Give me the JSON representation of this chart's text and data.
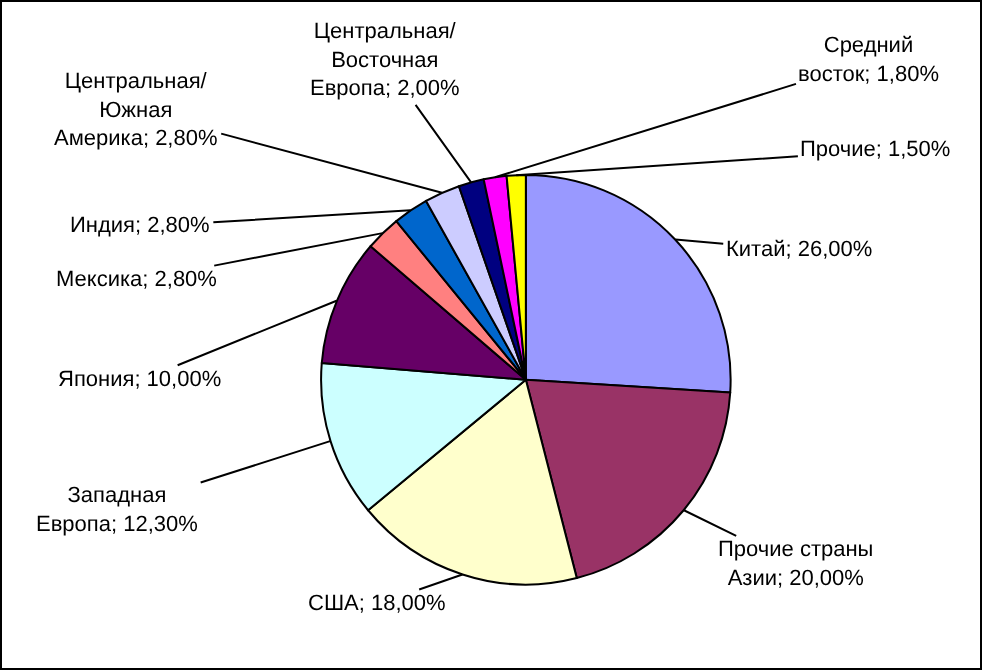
{
  "chart_data": {
    "type": "pie",
    "categories": [
      "Китай",
      "Прочие страны Азии",
      "США",
      "Западная Европа",
      "Япония",
      "Мексика",
      "Индия",
      "Центральная/Южная Америка",
      "Центральная/Восточная Европа",
      "Средний восток",
      "Прочие"
    ],
    "values": [
      26,
      20,
      18,
      12.3,
      10,
      2.8,
      2.8,
      2.8,
      2,
      1.8,
      1.5
    ],
    "colors": [
      "#9999ff",
      "#993366",
      "#ffffcc",
      "#ccffff",
      "#660066",
      "#ff8080",
      "#0066cc",
      "#ccccff",
      "#000080",
      "#ff00ff",
      "#ffff00"
    ],
    "value_labels": [
      "26,00%",
      "20,00%",
      "18,00%",
      "12,30%",
      "10,00%",
      "2,80%",
      "2,80%",
      "2,80%",
      "2,00%",
      "1,80%",
      "1,50%"
    ],
    "legend": false
  }
}
